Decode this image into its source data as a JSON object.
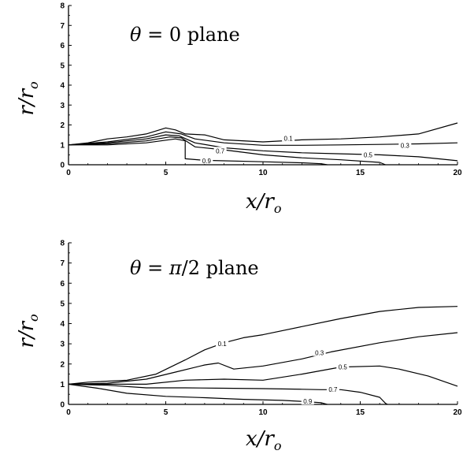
{
  "chart_data": [
    {
      "type": "line",
      "title": "θ = 0 plane",
      "title_parts": {
        "symbol": "θ",
        "rest": " = 0 plane"
      },
      "xlabel": "x/r",
      "xlabel_sub": "o",
      "ylabel": "r/r",
      "ylabel_sub": "o",
      "xlim": [
        0,
        20
      ],
      "ylim": [
        0,
        8
      ],
      "xticks": [
        "0",
        "5",
        "10",
        "15",
        "20"
      ],
      "yticks": [
        "0",
        "1",
        "2",
        "3",
        "4",
        "5",
        "6",
        "7",
        "8"
      ],
      "grid": false,
      "series": [
        {
          "name": "0.1",
          "label_at": [
            11.3,
            1.33
          ],
          "points": [
            [
              0,
              1
            ],
            [
              1,
              1.1
            ],
            [
              2,
              1.3
            ],
            [
              3,
              1.4
            ],
            [
              4,
              1.55
            ],
            [
              5,
              1.85
            ],
            [
              5.5,
              1.75
            ],
            [
              6,
              1.55
            ],
            [
              7,
              1.5
            ],
            [
              8,
              1.25
            ],
            [
              10,
              1.15
            ],
            [
              12,
              1.25
            ],
            [
              14,
              1.3
            ],
            [
              16,
              1.4
            ],
            [
              18,
              1.55
            ],
            [
              20,
              2.1
            ]
          ]
        },
        {
          "name": "0.3",
          "label_at": [
            17.3,
            0.98
          ],
          "points": [
            [
              0,
              1
            ],
            [
              2,
              1.15
            ],
            [
              4,
              1.4
            ],
            [
              5,
              1.65
            ],
            [
              5.8,
              1.55
            ],
            [
              6.5,
              1.3
            ],
            [
              8,
              1.1
            ],
            [
              10,
              0.98
            ],
            [
              12,
              0.98
            ],
            [
              14,
              1.0
            ],
            [
              16,
              1.02
            ],
            [
              18,
              1.05
            ],
            [
              20,
              1.1
            ]
          ]
        },
        {
          "name": "0.5",
          "label_at": [
            15.4,
            0.5
          ],
          "points": [
            [
              0,
              1
            ],
            [
              2,
              1.1
            ],
            [
              4,
              1.3
            ],
            [
              5,
              1.5
            ],
            [
              5.7,
              1.45
            ],
            [
              6.5,
              1.1
            ],
            [
              8,
              0.85
            ],
            [
              10,
              0.7
            ],
            [
              12,
              0.6
            ],
            [
              14,
              0.55
            ],
            [
              16,
              0.5
            ],
            [
              18,
              0.4
            ],
            [
              20,
              0.2
            ]
          ]
        },
        {
          "name": "0.7",
          "label_at": [
            7.8,
            0.7
          ],
          "points": [
            [
              0,
              1
            ],
            [
              2,
              1.05
            ],
            [
              4,
              1.2
            ],
            [
              5.2,
              1.4
            ],
            [
              5.8,
              1.35
            ],
            [
              6.5,
              0.9
            ],
            [
              8,
              0.75
            ],
            [
              10,
              0.5
            ],
            [
              12,
              0.35
            ],
            [
              14,
              0.25
            ],
            [
              16,
              0.12
            ],
            [
              16.3,
              0
            ]
          ]
        },
        {
          "name": "0.9",
          "label_at": [
            7.1,
            0.2
          ],
          "points": [
            [
              0,
              1
            ],
            [
              2,
              1.0
            ],
            [
              4,
              1.1
            ],
            [
              5.5,
              1.3
            ],
            [
              6.0,
              1.2
            ],
            [
              6.0,
              0.3
            ],
            [
              7,
              0.22
            ],
            [
              10,
              0.15
            ],
            [
              12,
              0.1
            ],
            [
              13,
              0.05
            ],
            [
              13.3,
              0
            ]
          ]
        }
      ]
    },
    {
      "type": "line",
      "title": "θ = π/2 plane",
      "title_parts": {
        "symbol": "θ",
        "rest": " = ",
        "symbol2": "π",
        "rest2": "/2 plane"
      },
      "xlabel": "x/r",
      "xlabel_sub": "o",
      "ylabel": "r/r",
      "ylabel_sub": "o",
      "xlim": [
        0,
        20
      ],
      "ylim": [
        0,
        8
      ],
      "xticks": [
        "0",
        "5",
        "10",
        "15",
        "20"
      ],
      "yticks": [
        "0",
        "1",
        "2",
        "3",
        "4",
        "5",
        "6",
        "7",
        "8"
      ],
      "grid": false,
      "series": [
        {
          "name": "0.1",
          "label_at": [
            7.9,
            3.0
          ],
          "points": [
            [
              0,
              1
            ],
            [
              1,
              1.1
            ],
            [
              3,
              1.2
            ],
            [
              4.5,
              1.5
            ],
            [
              6,
              2.2
            ],
            [
              7,
              2.7
            ],
            [
              8,
              3.05
            ],
            [
              9,
              3.3
            ],
            [
              10,
              3.45
            ],
            [
              12,
              3.85
            ],
            [
              14,
              4.25
            ],
            [
              16,
              4.6
            ],
            [
              18,
              4.8
            ],
            [
              20,
              4.85
            ]
          ]
        },
        {
          "name": "0.3",
          "label_at": [
            12.9,
            2.55
          ],
          "points": [
            [
              0,
              1
            ],
            [
              2,
              1.05
            ],
            [
              4,
              1.25
            ],
            [
              5.5,
              1.6
            ],
            [
              7,
              1.95
            ],
            [
              7.7,
              2.05
            ],
            [
              8.5,
              1.75
            ],
            [
              10,
              1.9
            ],
            [
              12,
              2.25
            ],
            [
              13.5,
              2.6
            ],
            [
              16,
              3.05
            ],
            [
              18,
              3.35
            ],
            [
              20,
              3.55
            ]
          ]
        },
        {
          "name": "0.5",
          "label_at": [
            14.1,
            1.85
          ],
          "points": [
            [
              0,
              1
            ],
            [
              2,
              1.0
            ],
            [
              4,
              1.0
            ],
            [
              6,
              1.2
            ],
            [
              8,
              1.25
            ],
            [
              10,
              1.2
            ],
            [
              12,
              1.5
            ],
            [
              14,
              1.85
            ],
            [
              16,
              1.9
            ],
            [
              17,
              1.75
            ],
            [
              18.5,
              1.4
            ],
            [
              20,
              0.9
            ]
          ]
        },
        {
          "name": "0.7",
          "label_at": [
            13.6,
            0.75
          ],
          "points": [
            [
              0,
              1
            ],
            [
              2,
              0.95
            ],
            [
              4,
              0.82
            ],
            [
              6,
              0.82
            ],
            [
              8,
              0.8
            ],
            [
              10,
              0.78
            ],
            [
              12,
              0.75
            ],
            [
              13,
              0.73
            ],
            [
              14,
              0.73
            ],
            [
              15,
              0.6
            ],
            [
              16.0,
              0.35
            ],
            [
              16.3,
              0.05
            ],
            [
              16.4,
              0
            ]
          ]
        },
        {
          "name": "0.9",
          "label_at": [
            12.3,
            0.15
          ],
          "points": [
            [
              0,
              1
            ],
            [
              1.5,
              0.8
            ],
            [
              3,
              0.55
            ],
            [
              5,
              0.4
            ],
            [
              7,
              0.33
            ],
            [
              9,
              0.25
            ],
            [
              11,
              0.2
            ],
            [
              12,
              0.15
            ],
            [
              13,
              0.08
            ],
            [
              13.3,
              0
            ]
          ]
        }
      ]
    }
  ]
}
